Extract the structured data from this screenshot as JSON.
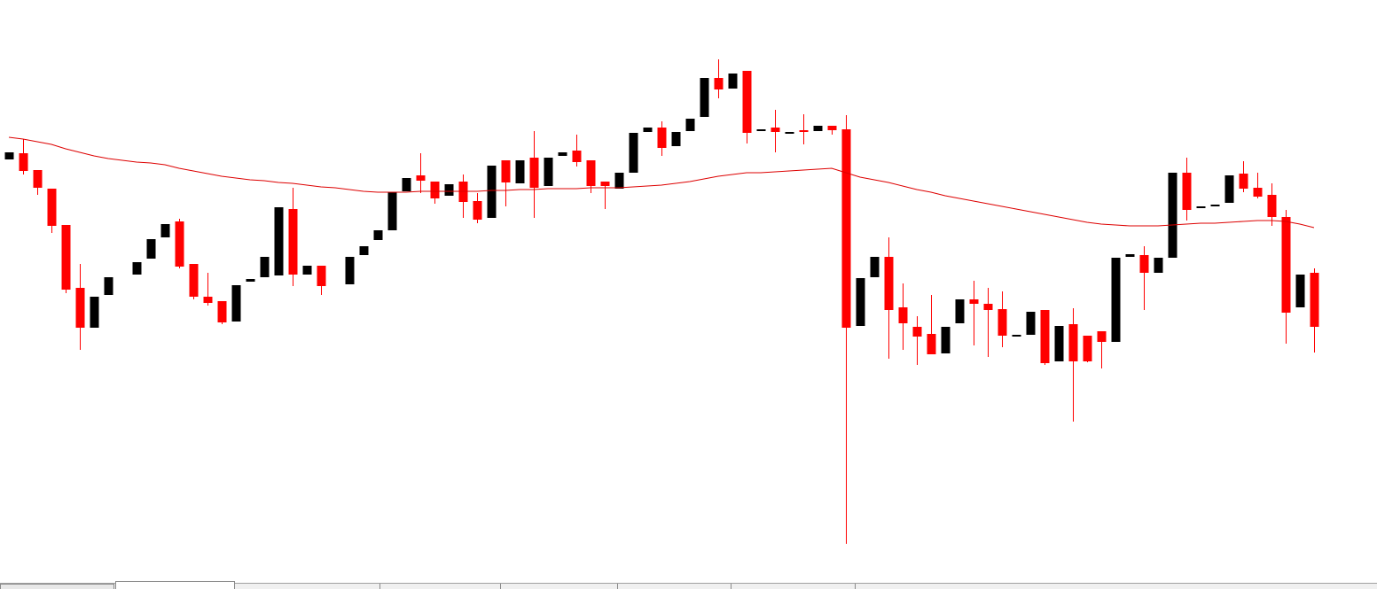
{
  "chart_data": {
    "type": "candlestick",
    "up_color": "#000000",
    "down_color": "#ff0000",
    "ylim": [
      0,
      665
    ],
    "open": [
      485,
      492,
      473,
      452,
      411,
      340,
      295,
      332,
      null,
      355,
      373,
      397,
      415,
      367,
      330,
      325,
      302,
      347,
      352,
      354,
      429,
      355,
      365,
      null,
      344,
      377,
      394,
      405,
      449,
      467,
      460,
      444,
      460,
      438,
      419,
      484,
      458,
      487,
      455,
      489,
      495,
      484,
      460,
      452,
      470,
      516,
      521,
      500,
      517,
      533,
      577,
      565,
      585,
      517,
      521,
      514,
      518,
      517,
      523,
      519,
      297,
      352,
      375,
      318,
      296,
      288,
      266,
      300,
      327,
      322,
      316,
      285,
      287,
      315,
      257,
      299,
      286,
      291,
      279,
      375,
      377,
      357,
      374,
      470,
      430,
      432,
      436,
      469,
      453,
      445,
      420,
      318,
      357
    ],
    "high": [
      493,
      508,
      473,
      452,
      411,
      367,
      330,
      352,
      null,
      369,
      395,
      412,
      418,
      367,
      357,
      325,
      343,
      350,
      375,
      431,
      453,
      365,
      365,
      null,
      375,
      387,
      405,
      448,
      464,
      492,
      460,
      457,
      468,
      447,
      478,
      484,
      484,
      517,
      487,
      493,
      513,
      484,
      460,
      470,
      515,
      521,
      528,
      516,
      531,
      577,
      598,
      582,
      585,
      519,
      541,
      516,
      536,
      523,
      523,
      535,
      351,
      375,
      397,
      345,
      308,
      332,
      296,
      327,
      348,
      340,
      336,
      287,
      313,
      315,
      297,
      317,
      286,
      291,
      374,
      378,
      387,
      374,
      470,
      487,
      432,
      434,
      467,
      483,
      470,
      458,
      428,
      355,
      362
    ],
    "low": [
      485,
      468,
      445,
      402,
      334,
      270,
      295,
      332,
      null,
      355,
      373,
      397,
      362,
      327,
      320,
      299,
      302,
      347,
      352,
      354,
      342,
      355,
      332,
      null,
      344,
      377,
      394,
      405,
      449,
      447,
      435,
      444,
      419,
      413,
      419,
      432,
      458,
      419,
      455,
      489,
      477,
      447,
      429,
      452,
      470,
      516,
      489,
      500,
      517,
      533,
      554,
      565,
      503,
      517,
      493,
      514,
      502,
      517,
      513,
      51,
      297,
      352,
      260,
      270,
      253,
      265,
      266,
      300,
      275,
      262,
      273,
      285,
      287,
      253,
      257,
      189,
      256,
      249,
      279,
      375,
      315,
      357,
      374,
      416,
      430,
      432,
      436,
      448,
      441,
      410,
      277,
      318,
      267
    ],
    "close": [
      493,
      472,
      453,
      410,
      338,
      295,
      330,
      352,
      null,
      369,
      395,
      412,
      364,
      330,
      323,
      301,
      343,
      350,
      375,
      431,
      355,
      365,
      342,
      null,
      375,
      387,
      405,
      448,
      464,
      461,
      441,
      457,
      437,
      417,
      478,
      459,
      484,
      453,
      487,
      493,
      482,
      455,
      455,
      470,
      515,
      521,
      498,
      516,
      531,
      577,
      564,
      582,
      515,
      519,
      516,
      516,
      516,
      523,
      518,
      295,
      351,
      375,
      315,
      300,
      285,
      265,
      296,
      327,
      322,
      315,
      286,
      287,
      313,
      255,
      297,
      257,
      257,
      279,
      374,
      378,
      357,
      374,
      470,
      428,
      432,
      434,
      467,
      452,
      443,
      420,
      312,
      355,
      296
    ],
    "moving_average": {
      "color": "#dd0000",
      "values": [
        510,
        508,
        505,
        502,
        497,
        493,
        489,
        486,
        484,
        482,
        481,
        479,
        475,
        472,
        469,
        466,
        464,
        462,
        461,
        459,
        458,
        456,
        454,
        453,
        451,
        449,
        448,
        448,
        448,
        449,
        449,
        449,
        449,
        449,
        450,
        450,
        451,
        451,
        452,
        452,
        452,
        453,
        453,
        453,
        454,
        455,
        456,
        458,
        460,
        463,
        466,
        468,
        470,
        470,
        471,
        472,
        473,
        474,
        475,
        470,
        465,
        462,
        459,
        455,
        451,
        448,
        444,
        441,
        438,
        435,
        432,
        429,
        426,
        423,
        420,
        417,
        414,
        412,
        411,
        410,
        410,
        410,
        411,
        412,
        413,
        413,
        414,
        415,
        416,
        416,
        415,
        412,
        408
      ]
    }
  }
}
